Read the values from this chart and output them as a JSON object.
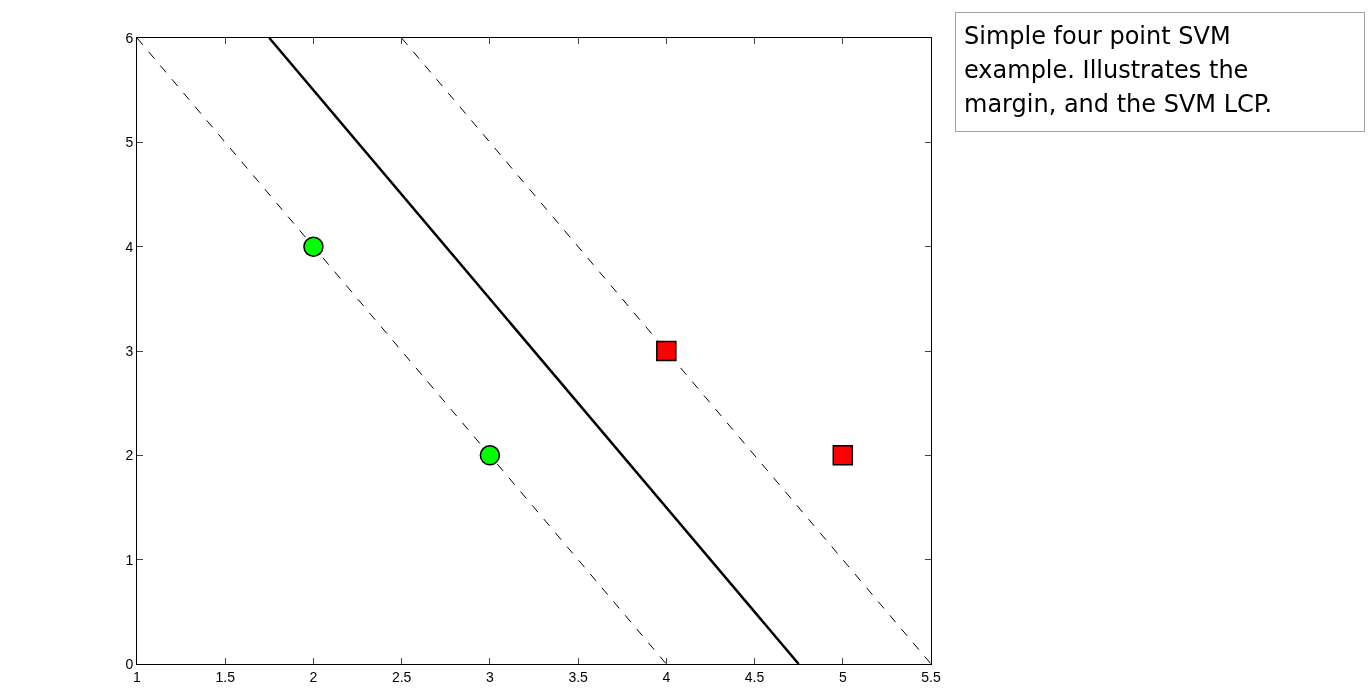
{
  "chart_data": {
    "type": "scatter",
    "annotations": [
      "Simple four point SVM example. Illustrates the margin, and the SVM LCP."
    ],
    "xlim": [
      1,
      5.5
    ],
    "xticks": [
      1,
      1.5,
      2,
      2.5,
      3,
      3.5,
      4,
      4.5,
      5,
      5.5
    ],
    "ylim": [
      0,
      6
    ],
    "yticks": [
      0,
      1,
      2,
      3,
      4,
      5,
      6
    ],
    "grid": false,
    "series": [
      {
        "color": "#00ff00",
        "marker": "circle",
        "x": [
          2,
          3
        ],
        "values": [
          4,
          2
        ]
      },
      {
        "color": "#ff0000",
        "marker": "square",
        "x": [
          4,
          5
        ],
        "values": [
          3,
          2
        ]
      },
      {
        "type": "line",
        "color": "#000000",
        "line_style": "solid",
        "x": [
          1.75,
          4.75
        ],
        "values": [
          6,
          0
        ]
      },
      {
        "type": "line",
        "color": "#000000",
        "line_style": "dashed",
        "x": [
          1,
          4
        ],
        "values": [
          6,
          0
        ]
      },
      {
        "type": "line",
        "color": "#000000",
        "line_style": "dashed",
        "x": [
          2.5,
          5.5
        ],
        "values": [
          6,
          0
        ]
      }
    ]
  }
}
